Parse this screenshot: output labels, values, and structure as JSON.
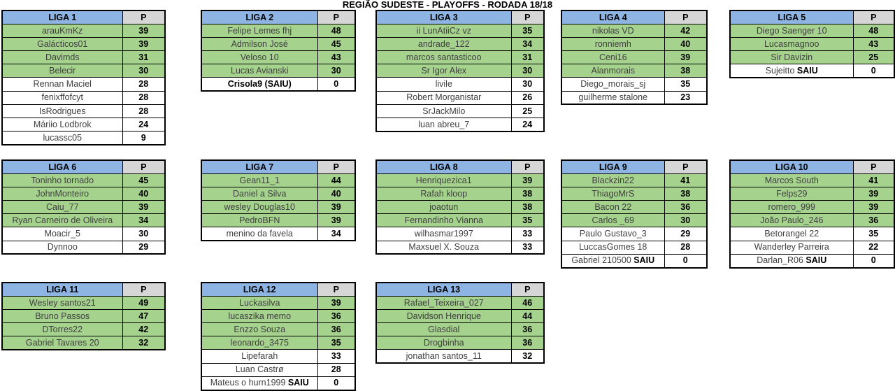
{
  "title": "REGIÃO SUDESTE - PLAYOFFS - RODADA 18/18",
  "points_header": "P",
  "colors": {
    "header_blue": "#8DB4E2",
    "header_gray": "#D6D6D6",
    "qualified_green": "#A5D28D",
    "border": "#000000"
  },
  "leagues": [
    {
      "name": "LIGA 1",
      "rows": [
        {
          "player": "arauKmKz",
          "points": 39,
          "qualified": true
        },
        {
          "player": "Galácticos01",
          "points": 39,
          "qualified": true
        },
        {
          "player": "Davimds",
          "points": 31,
          "qualified": true
        },
        {
          "player": "Belecir",
          "points": 30,
          "qualified": true
        },
        {
          "player": "Rennan Maciel",
          "points": 28,
          "qualified": false
        },
        {
          "player": "fenixffofcyt",
          "points": 28,
          "qualified": false
        },
        {
          "player": "IsRodrigues",
          "points": 28,
          "qualified": false
        },
        {
          "player": "Máriio Lodbrok",
          "points": 24,
          "qualified": false
        },
        {
          "player": "lucassc05",
          "points": 9,
          "qualified": false
        }
      ]
    },
    {
      "name": "LIGA 2",
      "rows": [
        {
          "player": "Felipe Lemes fhj",
          "points": 48,
          "qualified": true
        },
        {
          "player": "Admilson José",
          "points": 45,
          "qualified": true
        },
        {
          "player": "Veloso 10",
          "points": 43,
          "qualified": true
        },
        {
          "player": "Lucas Avianski",
          "points": 30,
          "qualified": true
        },
        {
          "player": "Crisola9 (SAIU)",
          "points": 0,
          "qualified": false,
          "bold": true
        }
      ]
    },
    {
      "name": "LIGA 3",
      "rows": [
        {
          "player": "ii LunAtiiCz vz",
          "points": 35,
          "qualified": true
        },
        {
          "player": "andrade_122",
          "points": 34,
          "qualified": true
        },
        {
          "player": "marcos santasticoo",
          "points": 31,
          "qualified": true
        },
        {
          "player": "Sr Igor Alex",
          "points": 30,
          "qualified": true
        },
        {
          "player": "livile",
          "points": 30,
          "qualified": false
        },
        {
          "player": "Robert Morganistar",
          "points": 26,
          "qualified": false
        },
        {
          "player": "SrJackMilo",
          "points": 25,
          "qualified": false
        },
        {
          "player": "luan abreu_7",
          "points": 24,
          "qualified": false
        }
      ]
    },
    {
      "name": "LIGA 4",
      "rows": [
        {
          "player": "nikolas VD",
          "points": 42,
          "qualified": true
        },
        {
          "player": "ronniemh",
          "points": 40,
          "qualified": true
        },
        {
          "player": "Ceni16",
          "points": 39,
          "qualified": true
        },
        {
          "player": "Alanmorais",
          "points": 38,
          "qualified": true
        },
        {
          "player": "Diego_morais_sj",
          "points": 35,
          "qualified": false
        },
        {
          "player": "guilherme stalone",
          "points": 23,
          "qualified": false
        }
      ]
    },
    {
      "name": "LIGA 5",
      "rows": [
        {
          "player": "Diego Saenger 10",
          "points": 48,
          "qualified": true
        },
        {
          "player": "Lucasmagnoo",
          "points": 43,
          "qualified": true
        },
        {
          "player": "Sir Davizin",
          "points": 25,
          "qualified": true
        },
        {
          "player": "Sujeitto",
          "suffix": "SAIU",
          "points": 0,
          "qualified": false
        }
      ]
    },
    {
      "name": "LIGA 6",
      "rows": [
        {
          "player": "Toninho tornado",
          "points": 45,
          "qualified": true
        },
        {
          "player": "JohnMonteiro",
          "points": 40,
          "qualified": true
        },
        {
          "player": "Caiu_77",
          "points": 39,
          "qualified": true
        },
        {
          "player": "Ryan Carneiro de Oliveira",
          "points": 34,
          "qualified": true
        },
        {
          "player": "Moacir_5",
          "points": 30,
          "qualified": false
        },
        {
          "player": "Dynnoo",
          "points": 29,
          "qualified": false
        }
      ]
    },
    {
      "name": "LIGA 7",
      "rows": [
        {
          "player": "Gean11_1",
          "points": 44,
          "qualified": true
        },
        {
          "player": "Daniel a Silva",
          "points": 40,
          "qualified": true
        },
        {
          "player": "wesley Douglas10",
          "points": 39,
          "qualified": true
        },
        {
          "player": "PedroBFN",
          "points": 39,
          "qualified": true
        },
        {
          "player": "menino da favela",
          "points": 34,
          "qualified": false
        }
      ]
    },
    {
      "name": "LIGA 8",
      "rows": [
        {
          "player": "Henriquezica1",
          "points": 39,
          "qualified": true
        },
        {
          "player": "Rafah kloop",
          "points": 38,
          "qualified": true
        },
        {
          "player": "joaotun",
          "points": 38,
          "qualified": true
        },
        {
          "player": "Fernandinho Vianna",
          "points": 35,
          "qualified": true
        },
        {
          "player": "wilhasmar1997",
          "points": 33,
          "qualified": false
        },
        {
          "player": "Maxsuel X. Souza",
          "points": 33,
          "qualified": false
        }
      ]
    },
    {
      "name": "LIGA 9",
      "rows": [
        {
          "player": "Blackzin22",
          "points": 41,
          "qualified": true
        },
        {
          "player": "ThiagoMrS",
          "points": 38,
          "qualified": true
        },
        {
          "player": "Bacon 22",
          "points": 36,
          "qualified": true
        },
        {
          "player": "Carlos _69",
          "points": 30,
          "qualified": true
        },
        {
          "player": "Paulo Gustavo_3",
          "points": 29,
          "qualified": false
        },
        {
          "player": "LuccasGomes 18",
          "points": 28,
          "qualified": false
        },
        {
          "player": "Gabriel 210500",
          "suffix": "SAIU",
          "points": 0,
          "qualified": false
        }
      ]
    },
    {
      "name": "LIGA 10",
      "rows": [
        {
          "player": "Marcos South",
          "points": 41,
          "qualified": true
        },
        {
          "player": "Felps29",
          "points": 39,
          "qualified": true
        },
        {
          "player": "romero_999",
          "points": 39,
          "qualified": true
        },
        {
          "player": "João Paulo_246",
          "points": 36,
          "qualified": true
        },
        {
          "player": "Betorangel 22",
          "points": 35,
          "qualified": false
        },
        {
          "player": "Wanderley Parreira",
          "points": 22,
          "qualified": false
        },
        {
          "player": "Darlan_R06",
          "suffix": "SAIU",
          "points": 0,
          "qualified": false
        }
      ]
    },
    {
      "name": "LIGA 11",
      "rows": [
        {
          "player": "Wesley santos21",
          "points": 49,
          "qualified": true
        },
        {
          "player": "Bruno Passos",
          "points": 47,
          "qualified": true
        },
        {
          "player": "DTorres22",
          "points": 42,
          "qualified": true
        },
        {
          "player": "Gabriel Tavares 20",
          "points": 32,
          "qualified": true
        }
      ]
    },
    {
      "name": "LIGA 12",
      "rows": [
        {
          "player": "Luckasilva",
          "points": 39,
          "qualified": true
        },
        {
          "player": "lucaszika memo",
          "points": 36,
          "qualified": true
        },
        {
          "player": "Enzzo Souza",
          "points": 36,
          "qualified": true
        },
        {
          "player": "leonardo_3475",
          "points": 35,
          "qualified": true
        },
        {
          "player": "Lipefarah",
          "points": 33,
          "qualified": false
        },
        {
          "player": "Luan Castrø",
          "points": 28,
          "qualified": false
        },
        {
          "player": "Mateus o hurn1999",
          "suffix": "SAIU",
          "points": 0,
          "qualified": false
        }
      ]
    },
    {
      "name": "LIGA 13",
      "rows": [
        {
          "player": "Rafael_Teixeira_027",
          "points": 46,
          "qualified": true
        },
        {
          "player": "Davidson Henrique",
          "points": 44,
          "qualified": true
        },
        {
          "player": "Glasdial",
          "points": 36,
          "qualified": true
        },
        {
          "player": "Drogbinha",
          "points": 36,
          "qualified": true
        },
        {
          "player": "jonathan santos_11",
          "points": 32,
          "qualified": false
        }
      ]
    }
  ]
}
